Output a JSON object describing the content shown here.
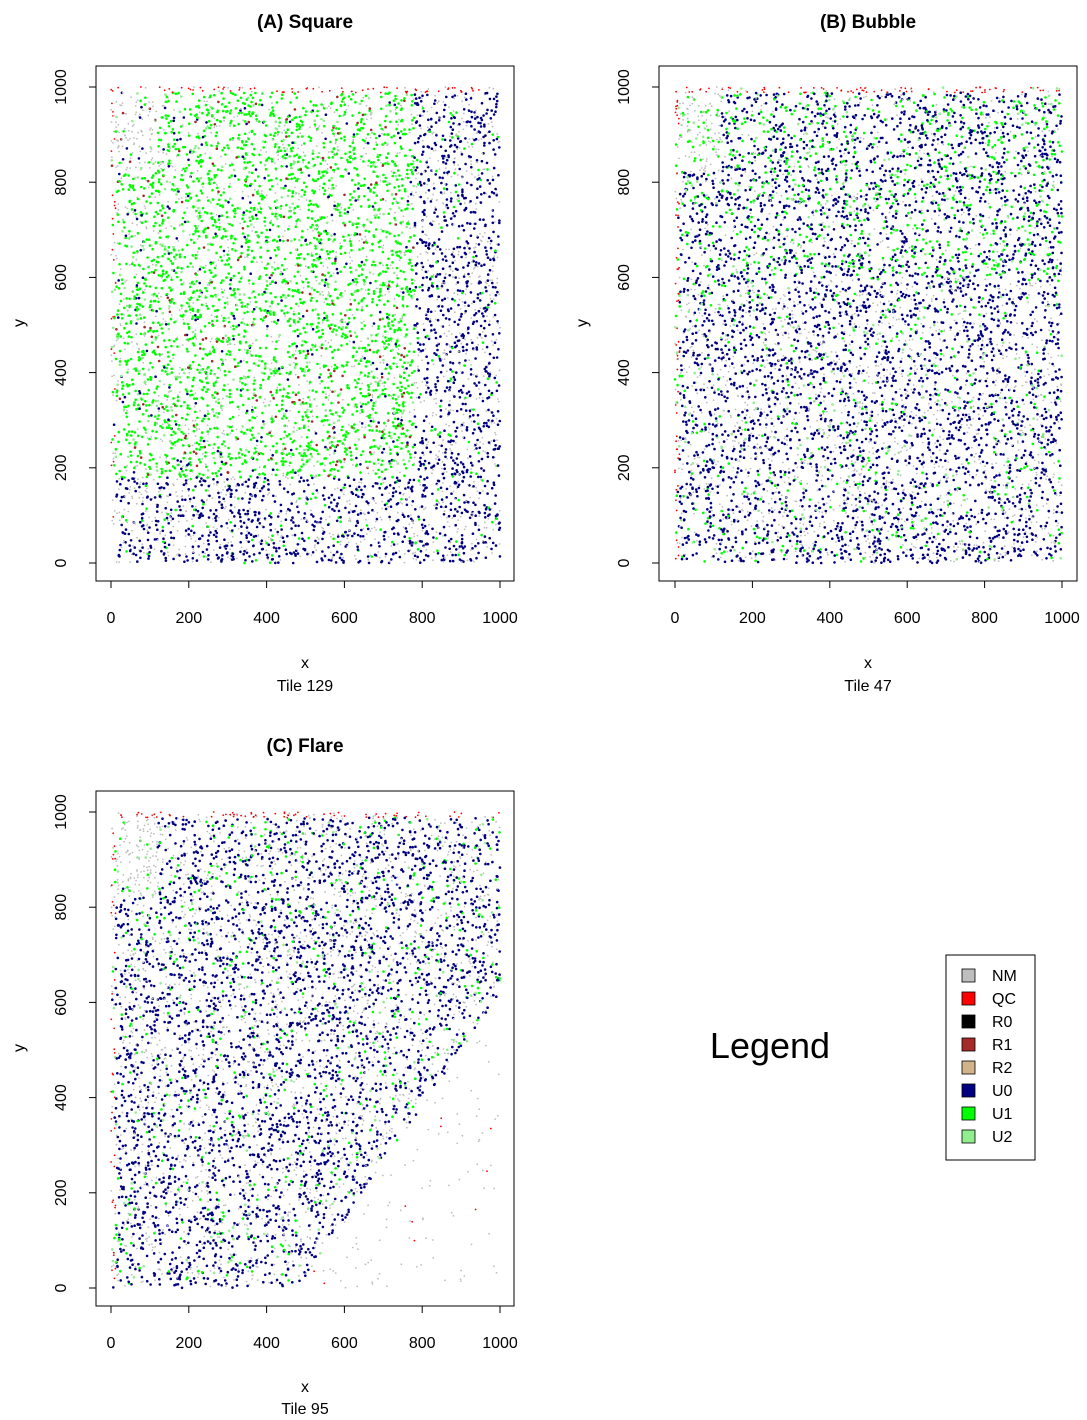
{
  "chart_data": [
    {
      "type": "scatter",
      "title": "(A) Square",
      "xlabel": "x",
      "subtitle": "Tile 129",
      "ylabel": "y",
      "xlim": [
        0,
        1000
      ],
      "ylim": [
        0,
        1000
      ],
      "x_ticks": [
        "0",
        "200",
        "400",
        "600",
        "800",
        "1000"
      ],
      "y_ticks": [
        "0",
        "200",
        "400",
        "600",
        "800",
        "1000"
      ],
      "pattern": "square",
      "description_regions": {
        "U1_dense": {
          "x": [
            0,
            780
          ],
          "y": [
            180,
            1000
          ]
        },
        "U0_dense_right": {
          "x": [
            780,
            1000
          ],
          "y": [
            0,
            1000
          ]
        },
        "U0_dense_bottom": {
          "x": [
            0,
            780
          ],
          "y": [
            0,
            180
          ]
        },
        "QC_edges": [
          "top y>990",
          "left x<10"
        ],
        "NM_corner": {
          "x": [
            0,
            120
          ],
          "y": [
            820,
            1000
          ]
        }
      }
    },
    {
      "type": "scatter",
      "title": "(B) Bubble",
      "xlabel": "x",
      "subtitle": "Tile 47",
      "ylabel": "y",
      "xlim": [
        0,
        1000
      ],
      "ylim": [
        0,
        1000
      ],
      "x_ticks": [
        "0",
        "200",
        "400",
        "600",
        "800",
        "1000"
      ],
      "y_ticks": [
        "0",
        "200",
        "400",
        "600",
        "800",
        "1000"
      ],
      "pattern": "bubble",
      "description_regions": {
        "U0_dense": {
          "x": [
            0,
            1000
          ],
          "y": [
            0,
            1000
          ]
        },
        "U1_mixed_top": {
          "x": [
            0,
            1000
          ],
          "y": [
            600,
            1000
          ]
        },
        "QC_edges": [
          "top y>990",
          "left x<15"
        ],
        "NM_corner": {
          "x": [
            0,
            120
          ],
          "y": [
            820,
            1000
          ]
        }
      }
    },
    {
      "type": "scatter",
      "title": "(C) Flare",
      "xlabel": "x",
      "subtitle": "Tile 95",
      "ylabel": "y",
      "xlim": [
        0,
        1000
      ],
      "ylim": [
        0,
        1000
      ],
      "x_ticks": [
        "0",
        "200",
        "400",
        "600",
        "800",
        "1000"
      ],
      "y_ticks": [
        "0",
        "200",
        "400",
        "600",
        "800",
        "1000"
      ],
      "pattern": "flare",
      "description_regions": {
        "U0_dense": "above line from (480,0) to (1000,620)",
        "sparse_NM": "below line from (480,0) to (1000,620)",
        "QC_edges": [
          "top y>990",
          "left x<10"
        ],
        "NM_corner": {
          "x": [
            0,
            120
          ],
          "y": [
            820,
            1000
          ]
        }
      }
    }
  ],
  "legend": {
    "label": "Legend",
    "entries": [
      {
        "name": "NM",
        "color": "#bebebe"
      },
      {
        "name": "QC",
        "color": "#ff0000"
      },
      {
        "name": "R0",
        "color": "#000000"
      },
      {
        "name": "R1",
        "color": "#a52a2a"
      },
      {
        "name": "R2",
        "color": "#d2b48c"
      },
      {
        "name": "U0",
        "color": "#000080"
      },
      {
        "name": "U1",
        "color": "#00ff00"
      },
      {
        "name": "U2",
        "color": "#90ee90"
      }
    ]
  }
}
